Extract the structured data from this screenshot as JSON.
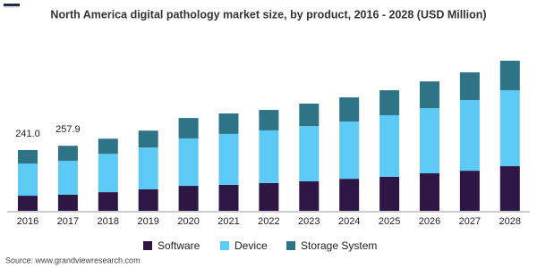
{
  "chart_data": {
    "type": "stacked_bar",
    "title": "North America digital pathology market size, by product, 2016 - 2028 (USD Million)",
    "categories": [
      "2016",
      "2017",
      "2018",
      "2019",
      "2020",
      "2021",
      "2022",
      "2023",
      "2024",
      "2025",
      "2026",
      "2027",
      "2028"
    ],
    "series": [
      {
        "name": "Software",
        "color": "#2e1745",
        "values": [
          60,
          64,
          74,
          85,
          99,
          103,
          110,
          117,
          127,
          135,
          149,
          159,
          177
        ]
      },
      {
        "name": "Device",
        "color": "#5ccaf5",
        "values": [
          127.5,
          134.5,
          152,
          166,
          188,
          202,
          209,
          219,
          227,
          244,
          258,
          280,
          301
        ]
      },
      {
        "name": "Storage System",
        "color": "#2f7386",
        "values": [
          53.5,
          59.4,
          60,
          67,
          81,
          81,
          81,
          89,
          96,
          99,
          106,
          110,
          117
        ]
      }
    ],
    "totals": {
      "values": [
        241.0,
        257.9
      ],
      "value_labels": [
        "241.0",
        "257.9"
      ]
    },
    "source": "Source: www.grandviewresearch.com"
  }
}
